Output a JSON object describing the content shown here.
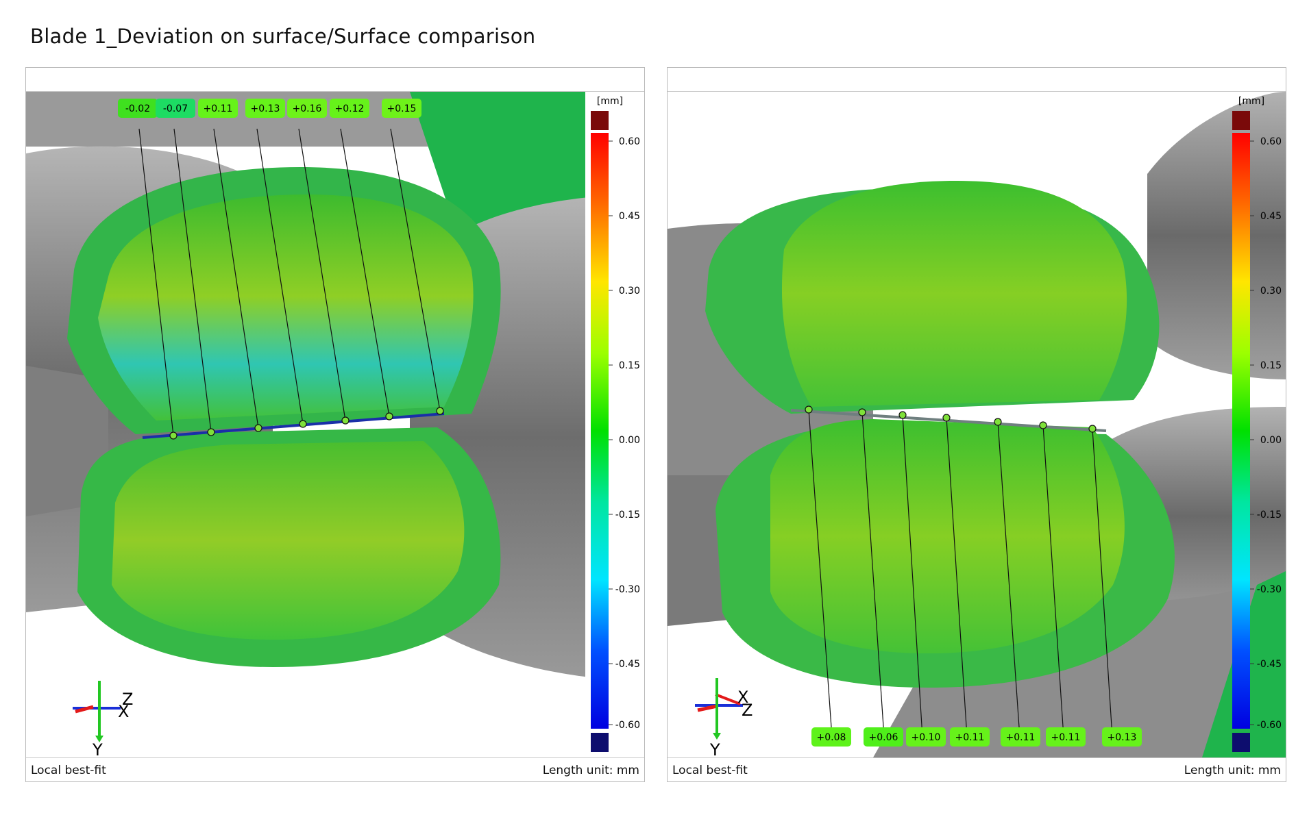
{
  "page": {
    "title": "Blade 1_Deviation on surface/Surface comparison"
  },
  "colors": {
    "high": "#7a0a0a",
    "low": "#0d0d6e",
    "label_bg": "#66f21a",
    "surface_green": "#3fc236",
    "surface_cyan": "#28c7b8",
    "surface_yellow": "#a7d321"
  },
  "colorbar": {
    "unit": "[mm]",
    "ticks": [
      "0.60",
      "0.45",
      "0.30",
      "0.15",
      "0.00",
      "-0.15",
      "-0.30",
      "-0.45",
      "-0.60"
    ]
  },
  "panels": [
    {
      "id": "left",
      "labels": [
        "-0.02",
        "-0.07",
        "+0.11",
        "+0.13",
        "+0.16",
        "+0.12",
        "+0.15"
      ],
      "triad": {
        "axis_1": "Z",
        "axis_2": "X",
        "axis_3": "Y"
      },
      "footer": {
        "left": "Local best-fit",
        "right": "Length unit: mm"
      }
    },
    {
      "id": "right",
      "labels": [
        "+0.08",
        "+0.06",
        "+0.10",
        "+0.11",
        "+0.11",
        "+0.11",
        "+0.13"
      ],
      "triad": {
        "axis_1": "X",
        "axis_2": "Z",
        "axis_3": "Y"
      },
      "footer": {
        "left": "Local best-fit",
        "right": "Length unit: mm"
      }
    }
  ]
}
